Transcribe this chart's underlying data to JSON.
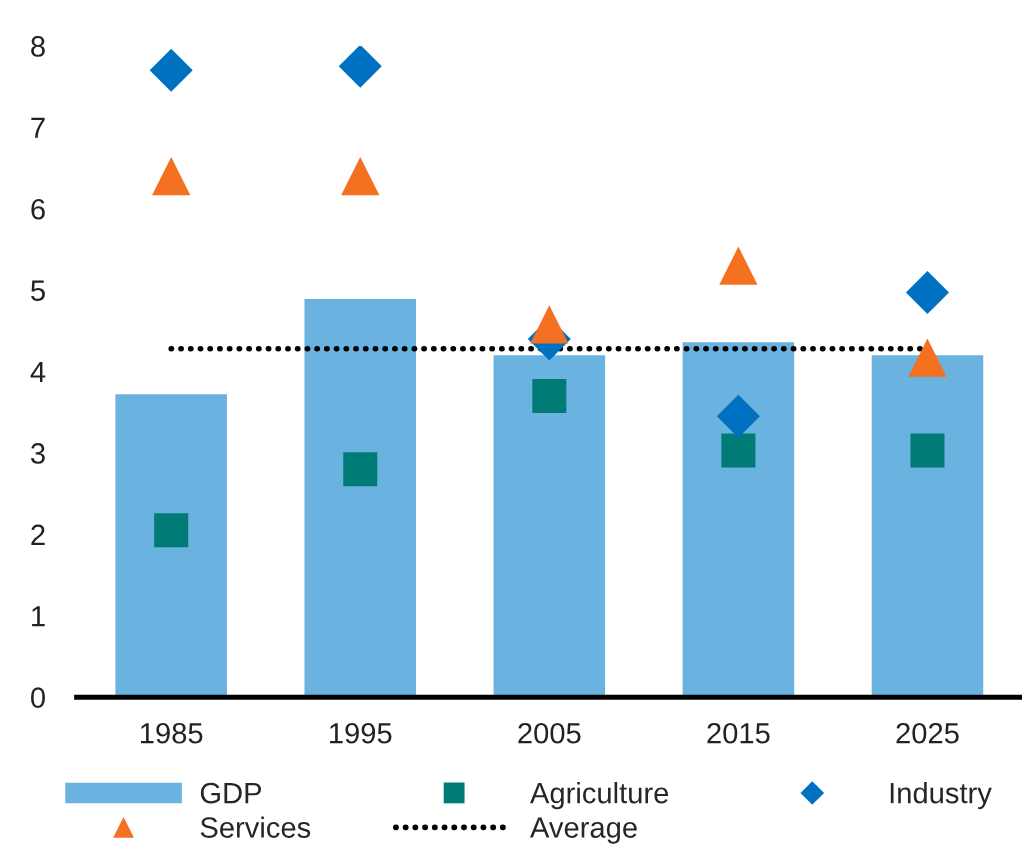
{
  "chart_data": {
    "type": "bar",
    "categories": [
      "1985",
      "1995",
      "2005",
      "2015",
      "2025"
    ],
    "series": [
      {
        "name": "GDP",
        "color": "#6ab2e0",
        "values": [
          3.72,
          4.89,
          4.2,
          4.36,
          4.2
        ]
      },
      {
        "name": "Agriculture",
        "type": "scatter",
        "marker": "square",
        "color": "#007b76",
        "values": [
          2.05,
          2.8,
          3.7,
          3.03,
          3.03
        ]
      },
      {
        "name": "Industry",
        "type": "scatter",
        "marker": "diamond",
        "color": "#0070c0",
        "values": [
          7.7,
          7.75,
          4.4,
          3.45,
          4.97
        ]
      },
      {
        "name": "Services",
        "type": "scatter",
        "marker": "triangle",
        "color": "#f47121",
        "values": [
          6.4,
          6.4,
          4.58,
          5.3,
          4.17
        ]
      },
      {
        "name": "Average",
        "type": "line",
        "marker": "none",
        "line_style": "dotted",
        "color": "#000000",
        "values": [
          4.28,
          4.28,
          4.28,
          4.28,
          4.28
        ]
      }
    ],
    "ylim": [
      0,
      8
    ],
    "yticks": [
      0,
      1,
      2,
      3,
      4,
      5,
      6,
      7,
      8
    ],
    "grid": false,
    "legend": "bottom"
  }
}
